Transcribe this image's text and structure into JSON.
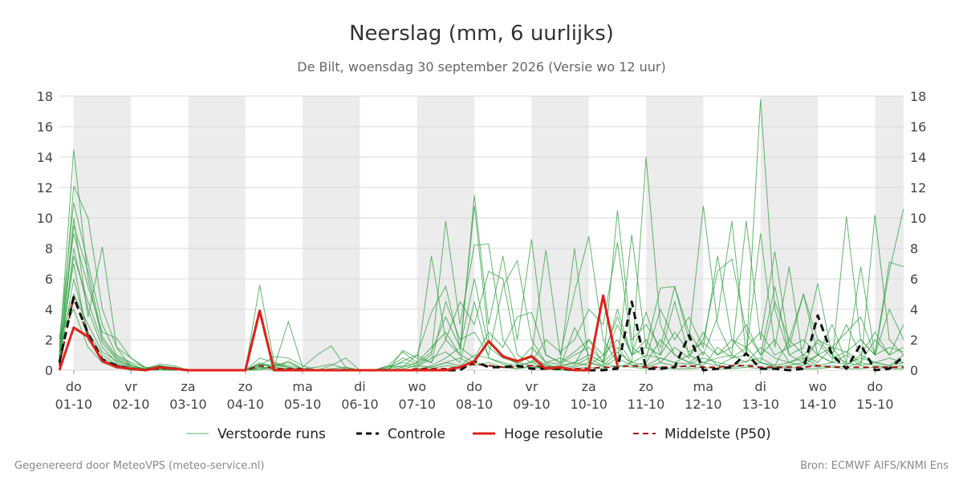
{
  "header": {
    "title": "Neerslag (mm, 6 uurlijks)",
    "subtitle": "De Bilt, woensdag 30 september 2026 (Versie wo 12 uur)"
  },
  "footer": {
    "left": "Gegenereerd door MeteoVPS (meteo-service.nl)",
    "right": "Bron: ECMWF AIFS/KNMI Ens"
  },
  "colors": {
    "ensemble": "#2e9e3e",
    "control": "#111111",
    "high_res": "#e0211b",
    "median": "#a01010",
    "weekend_band": "#ececec",
    "grid": "#d9d9d9"
  },
  "legend": {
    "ensemble": "Verstoorde runs",
    "control": "Controle",
    "high_res": "Hoge resolutie",
    "median": "Middelste (P50)"
  },
  "chart_data": {
    "type": "line",
    "title": "Neerslag (mm, 6 uurlijks)",
    "subtitle": "De Bilt, woensdag 30 september 2026 (Versie wo 12 uur)",
    "x_unit": "days from 01-10 00h (6-hourly steps)",
    "xlim": [
      -0.25,
      14.5
    ],
    "ylim": [
      0,
      18
    ],
    "yticks": [
      0,
      2,
      4,
      6,
      8,
      10,
      12,
      14,
      16,
      18
    ],
    "grid": true,
    "legend_position": "bottom",
    "x_tick_labels": [
      {
        "x": 0,
        "day": "do",
        "date": "01-10"
      },
      {
        "x": 1,
        "day": "vr",
        "date": "02-10"
      },
      {
        "x": 2,
        "day": "za",
        "date": "03-10"
      },
      {
        "x": 3,
        "day": "zo",
        "date": "04-10"
      },
      {
        "x": 4,
        "day": "ma",
        "date": "05-10"
      },
      {
        "x": 5,
        "day": "di",
        "date": "06-10"
      },
      {
        "x": 6,
        "day": "wo",
        "date": "07-10"
      },
      {
        "x": 7,
        "day": "do",
        "date": "08-10"
      },
      {
        "x": 8,
        "day": "vr",
        "date": "09-10"
      },
      {
        "x": 9,
        "day": "za",
        "date": "10-10"
      },
      {
        "x": 10,
        "day": "zo",
        "date": "11-10"
      },
      {
        "x": 11,
        "day": "ma",
        "date": "12-10"
      },
      {
        "x": 12,
        "day": "di",
        "date": "13-10"
      },
      {
        "x": 13,
        "day": "wo",
        "date": "14-10"
      },
      {
        "x": 14,
        "day": "do",
        "date": "15-10"
      }
    ],
    "shaded_bands": [
      [
        0,
        1
      ],
      [
        2,
        3
      ],
      [
        4,
        5
      ],
      [
        6,
        7
      ],
      [
        8,
        9
      ],
      [
        10,
        11
      ],
      [
        12,
        13
      ],
      [
        14,
        14.5
      ]
    ],
    "x": [
      -0.25,
      0,
      0.25,
      0.5,
      0.75,
      1,
      1.25,
      1.5,
      1.75,
      2,
      2.25,
      2.5,
      2.75,
      3,
      3.25,
      3.5,
      3.75,
      4,
      4.25,
      4.5,
      4.75,
      5,
      5.25,
      5.5,
      5.75,
      6,
      6.25,
      6.5,
      6.75,
      7,
      7.25,
      7.5,
      7.75,
      8,
      8.25,
      8.5,
      8.75,
      9,
      9.25,
      9.5,
      9.75,
      10,
      10.25,
      10.5,
      10.75,
      11,
      11.25,
      11.5,
      11.75,
      12,
      12.25,
      12.5,
      12.75,
      13,
      13.25,
      13.5,
      13.75,
      14,
      14.25,
      14.5
    ],
    "series": [
      {
        "name": "Controle",
        "style": "dashed",
        "values": [
          0.5,
          4.8,
          2.4,
          0.7,
          0.3,
          0.1,
          0.0,
          0.2,
          0.1,
          0.0,
          0.0,
          0.0,
          0.0,
          0.0,
          3.9,
          0.0,
          0.0,
          0.0,
          0.0,
          0.0,
          0.0,
          0.0,
          0.0,
          0.0,
          0.0,
          0.0,
          0.0,
          0.0,
          0.0,
          0.6,
          0.2,
          0.2,
          0.3,
          0.1,
          0.1,
          0.1,
          0.0,
          0.0,
          0.0,
          0.1,
          4.5,
          0.1,
          0.1,
          0.2,
          2.3,
          0.0,
          0.1,
          0.2,
          1.1,
          0.1,
          0.1,
          0.0,
          0.1,
          3.6,
          1.0,
          0.1,
          1.7,
          0.0,
          0.1,
          0.9
        ]
      },
      {
        "name": "Hoge resolutie",
        "style": "solid",
        "values": [
          0.0,
          2.8,
          2.2,
          0.6,
          0.2,
          0.1,
          0.0,
          0.2,
          0.1,
          0.0,
          0.0,
          0.0,
          0.0,
          0.0,
          3.9,
          0.0,
          0.0,
          0.0,
          0.0,
          0.0,
          0.0,
          0.0,
          0.0,
          0.0,
          0.0,
          0.0,
          0.0,
          0.0,
          0.2,
          0.6,
          1.9,
          0.9,
          0.6,
          0.9,
          0.1,
          0.2,
          0.0,
          0.0,
          4.9,
          0.3,
          null,
          null,
          null,
          null,
          null,
          null,
          null,
          null,
          null,
          null,
          null,
          null,
          null,
          null,
          null,
          null,
          null,
          null,
          null,
          null
        ]
      },
      {
        "name": "Middelste (P50)",
        "style": "dashed",
        "values": [
          0.3,
          4.8,
          2.3,
          0.6,
          0.3,
          0.1,
          0.0,
          0.1,
          0.1,
          0.0,
          0.0,
          0.0,
          0.0,
          0.0,
          0.3,
          0.1,
          0.1,
          0.1,
          0.0,
          0.0,
          0.0,
          0.0,
          0.0,
          0.0,
          0.0,
          0.1,
          0.1,
          0.1,
          0.2,
          0.4,
          0.3,
          0.2,
          0.2,
          0.3,
          0.2,
          0.1,
          0.1,
          0.1,
          0.2,
          0.2,
          0.3,
          0.2,
          0.2,
          0.2,
          0.3,
          0.2,
          0.2,
          0.3,
          0.3,
          0.2,
          0.2,
          0.2,
          0.2,
          0.3,
          0.2,
          0.2,
          0.2,
          0.2,
          0.2,
          0.2
        ]
      }
    ],
    "ensemble_members": [
      [
        1.2,
        14.5,
        6.0,
        2.0,
        0.8,
        0.3,
        0.1,
        0.2,
        0.1,
        0.0,
        0.0,
        0.0,
        0.0,
        0.0,
        5.6,
        0.5,
        0.3,
        0.1,
        0.0,
        0.0,
        0.0,
        0.0,
        0.0,
        0.0,
        0.0,
        0.0,
        0.3,
        0.8,
        1.5,
        10.8,
        2.0,
        1.0,
        0.5,
        0.3,
        0.1,
        0.2,
        0.5,
        1.0,
        0.5,
        0.2,
        0.5,
        14.0,
        3.0,
        1.0,
        0.5,
        0.3,
        1.5,
        0.8,
        1.0,
        17.8,
        4.0,
        1.0,
        0.5,
        2.0,
        1.0,
        0.5,
        0.3,
        10.2,
        2.0,
        1.0
      ],
      [
        0.5,
        12.1,
        10.0,
        4.0,
        1.5,
        0.8,
        0.2,
        0.1,
        0.0,
        0.0,
        0.0,
        0.0,
        0.0,
        0.0,
        0.3,
        0.9,
        0.8,
        0.3,
        0.0,
        0.0,
        0.0,
        0.0,
        0.0,
        0.3,
        1.2,
        0.5,
        7.5,
        2.0,
        1.0,
        11.5,
        3.0,
        7.5,
        2.0,
        8.6,
        1.0,
        0.5,
        8.0,
        0.5,
        0.3,
        10.5,
        2.0,
        3.0,
        1.5,
        5.5,
        2.0,
        10.8,
        3.0,
        1.0,
        9.8,
        2.0,
        7.8,
        1.5,
        5.0,
        1.0,
        0.5,
        10.1,
        2.0,
        1.0,
        7.1,
        6.8
      ],
      [
        2.0,
        11.0,
        7.0,
        3.0,
        1.0,
        0.5,
        0.2,
        0.0,
        0.1,
        0.0,
        0.0,
        0.0,
        0.0,
        0.0,
        0.5,
        0.2,
        3.2,
        0.2,
        1.0,
        1.6,
        0.2,
        0.0,
        0.0,
        0.2,
        0.5,
        0.3,
        1.0,
        9.8,
        3.0,
        8.2,
        8.3,
        2.0,
        0.6,
        1.0,
        7.9,
        1.0,
        5.1,
        8.8,
        2.0,
        0.5,
        8.9,
        1.5,
        5.4,
        5.5,
        2.5,
        1.0,
        3.5,
        9.8,
        1.0,
        9.0,
        1.5,
        6.8,
        0.5,
        1.0,
        3.0,
        0.5,
        6.8,
        1.0,
        6.5,
        10.6
      ],
      [
        0.8,
        10.0,
        3.5,
        8.1,
        1.5,
        0.2,
        0.0,
        0.3,
        0.2,
        0.0,
        0.0,
        0.0,
        0.0,
        0.0,
        0.4,
        0.2,
        0.1,
        0.0,
        0.0,
        0.3,
        0.8,
        0.0,
        0.0,
        0.0,
        1.3,
        0.8,
        0.5,
        2.0,
        4.5,
        3.0,
        6.5,
        6.0,
        1.0,
        0.5,
        2.0,
        1.2,
        2.0,
        4.0,
        3.0,
        8.4,
        1.5,
        0.8,
        4.0,
        2.0,
        3.5,
        1.5,
        7.5,
        2.0,
        1.0,
        0.5,
        4.5,
        2.0,
        5.0,
        2.0,
        1.5,
        2.5,
        3.5,
        1.0,
        4.0,
        2.0
      ],
      [
        1.5,
        9.0,
        5.5,
        2.5,
        2.1,
        0.8,
        0.1,
        0.4,
        0.3,
        0.0,
        0.0,
        0.0,
        0.0,
        0.0,
        0.1,
        0.3,
        0.5,
        0.1,
        0.2,
        0.4,
        0.1,
        0.0,
        0.0,
        0.3,
        0.2,
        1.0,
        3.8,
        5.5,
        1.5,
        0.8,
        2.5,
        1.5,
        3.5,
        3.8,
        1.0,
        0.5,
        1.2,
        2.0,
        1.0,
        3.5,
        1.0,
        3.8,
        1.0,
        4.5,
        1.0,
        2.0,
        6.5,
        7.3,
        2.5,
        1.0,
        5.5,
        1.0,
        1.5,
        5.7,
        1.0,
        3.0,
        1.0,
        2.5,
        1.0,
        3.0
      ],
      [
        0.3,
        8.0,
        4.0,
        1.5,
        0.5,
        0.2,
        0.1,
        0.2,
        0.0,
        0.0,
        0.0,
        0.0,
        0.0,
        0.0,
        0.2,
        0.1,
        0.1,
        0.0,
        0.0,
        0.0,
        0.0,
        0.0,
        0.0,
        0.1,
        0.3,
        0.2,
        0.8,
        1.2,
        0.5,
        4.5,
        0.8,
        0.5,
        0.3,
        0.5,
        0.2,
        0.3,
        0.5,
        0.3,
        1.0,
        2.0,
        0.5,
        1.0,
        0.8,
        0.5,
        1.0,
        0.5,
        0.8,
        1.0,
        0.5,
        1.5,
        0.8,
        0.5,
        0.3,
        1.0,
        0.5,
        1.0,
        0.3,
        0.5,
        0.8,
        0.5
      ],
      [
        1.0,
        7.0,
        2.0,
        0.8,
        0.3,
        0.0,
        0.0,
        0.1,
        0.0,
        0.0,
        0.0,
        0.0,
        0.0,
        0.0,
        0.8,
        0.5,
        0.2,
        0.0,
        0.0,
        0.0,
        0.0,
        0.0,
        0.0,
        0.0,
        0.2,
        0.5,
        1.5,
        2.5,
        1.0,
        0.5,
        1.8,
        1.0,
        0.4,
        1.0,
        0.3,
        0.2,
        2.8,
        1.0,
        0.5,
        1.5,
        0.3,
        0.5,
        2.0,
        1.0,
        0.5,
        1.2,
        0.3,
        0.8,
        1.5,
        0.5,
        0.3,
        2.0,
        1.0,
        0.5,
        1.5,
        0.3,
        1.0,
        0.5,
        0.3,
        1.0
      ],
      [
        0.6,
        6.0,
        2.5,
        1.0,
        0.4,
        0.1,
        0.0,
        0.3,
        0.1,
        0.0,
        0.0,
        0.0,
        0.0,
        0.0,
        0.1,
        0.0,
        0.0,
        0.0,
        0.0,
        0.0,
        0.0,
        0.0,
        0.0,
        0.0,
        0.0,
        0.1,
        0.2,
        0.5,
        0.8,
        0.3,
        0.5,
        0.2,
        0.1,
        0.3,
        0.1,
        0.0,
        0.2,
        0.5,
        0.2,
        0.8,
        0.3,
        0.2,
        0.5,
        0.3,
        0.2,
        0.5,
        0.3,
        0.2,
        0.3,
        0.5,
        0.2,
        0.3,
        0.5,
        0.2,
        0.3,
        0.2,
        0.5,
        0.3,
        0.2,
        0.3
      ],
      [
        1.8,
        5.0,
        3.0,
        1.2,
        0.6,
        0.3,
        0.1,
        0.2,
        0.0,
        0.0,
        0.0,
        0.0,
        0.0,
        0.0,
        0.4,
        0.2,
        0.6,
        0.1,
        0.0,
        0.1,
        0.2,
        0.0,
        0.0,
        0.1,
        0.6,
        1.0,
        0.5,
        4.5,
        2.0,
        2.5,
        1.0,
        5.5,
        7.2,
        2.0,
        0.5,
        0.8,
        0.4,
        2.0,
        0.5,
        3.0,
        1.0,
        2.0,
        0.5,
        1.5,
        0.8,
        2.5,
        1.0,
        1.5,
        3.0,
        1.0,
        2.0,
        0.5,
        1.0,
        1.8,
        0.8,
        1.2,
        0.5,
        2.0,
        1.0,
        1.5
      ],
      [
        0.2,
        9.5,
        6.5,
        2.2,
        0.9,
        0.4,
        0.0,
        0.1,
        0.2,
        0.0,
        0.0,
        0.0,
        0.0,
        0.0,
        0.0,
        0.3,
        0.2,
        0.0,
        0.0,
        0.0,
        0.0,
        0.0,
        0.0,
        0.0,
        0.1,
        0.3,
        0.2,
        0.5,
        0.3,
        1.0,
        0.8,
        0.4,
        0.2,
        0.6,
        0.4,
        0.1,
        0.3,
        0.8,
        0.3,
        1.2,
        0.5,
        0.3,
        0.8,
        0.5,
        0.4,
        0.8,
        0.5,
        0.3,
        0.6,
        0.8,
        0.3,
        0.5,
        0.8,
        0.3,
        0.5,
        0.4,
        0.8,
        0.5,
        0.3,
        0.5
      ],
      [
        2.2,
        4.0,
        1.5,
        0.5,
        0.2,
        0.0,
        0.0,
        0.0,
        0.0,
        0.0,
        0.0,
        0.0,
        0.0,
        0.0,
        0.2,
        0.1,
        0.0,
        0.0,
        0.0,
        0.0,
        0.0,
        0.0,
        0.0,
        0.0,
        0.0,
        0.0,
        0.1,
        0.3,
        0.2,
        0.5,
        0.3,
        0.2,
        0.1,
        0.2,
        0.1,
        0.0,
        0.1,
        0.2,
        0.1,
        0.3,
        0.2,
        0.1,
        0.2,
        0.1,
        0.1,
        0.2,
        0.1,
        0.1,
        0.2,
        0.1,
        0.1,
        0.2,
        0.1,
        0.1,
        0.2,
        0.1,
        0.1,
        0.2,
        0.1,
        0.1
      ],
      [
        0.9,
        7.5,
        4.5,
        1.8,
        0.7,
        0.2,
        0.1,
        0.3,
        0.1,
        0.0,
        0.0,
        0.0,
        0.0,
        0.0,
        0.3,
        0.4,
        0.2,
        0.0,
        0.0,
        0.0,
        0.1,
        0.0,
        0.0,
        0.2,
        0.8,
        0.4,
        1.2,
        3.5,
        1.5,
        6.0,
        1.5,
        0.8,
        0.5,
        1.5,
        0.5,
        0.4,
        1.0,
        1.5,
        0.6,
        4.0,
        1.0,
        1.5,
        1.0,
        2.5,
        1.2,
        1.8,
        1.0,
        2.0,
        1.5,
        2.5,
        1.0,
        1.5,
        2.0,
        1.0,
        1.5,
        1.2,
        2.0,
        1.0,
        1.5,
        1.2
      ]
    ]
  }
}
